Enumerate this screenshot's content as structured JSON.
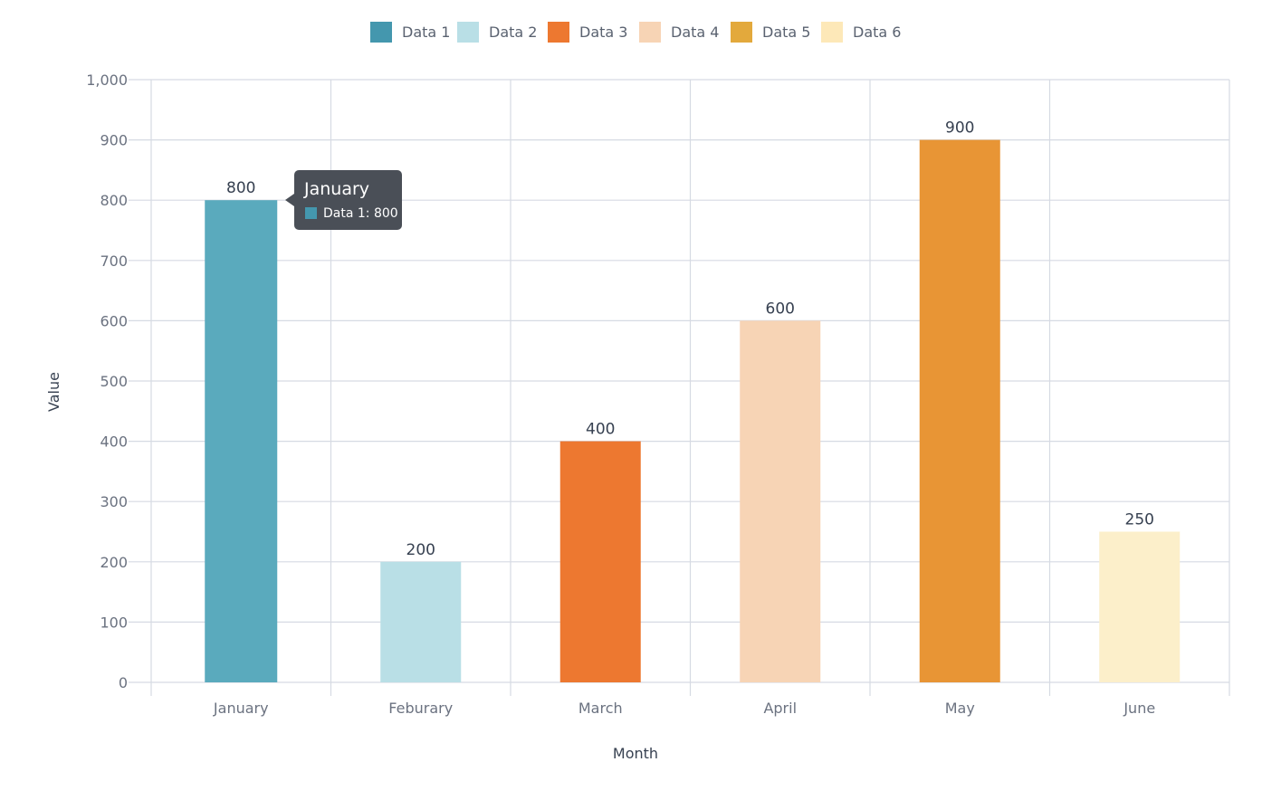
{
  "chart_data": {
    "type": "bar",
    "title": "",
    "xlabel": "Month",
    "ylabel": "Value",
    "ylim": [
      0,
      1000
    ],
    "yticks": [
      0,
      100,
      200,
      300,
      400,
      500,
      600,
      700,
      800,
      900,
      1000
    ],
    "ytick_labels": [
      "0",
      "100",
      "200",
      "300",
      "400",
      "500",
      "600",
      "700",
      "800",
      "900",
      "1,000"
    ],
    "categories": [
      "January",
      "Feburary",
      "March",
      "April",
      "May",
      "June"
    ],
    "series": [
      {
        "name": "Data 1",
        "color": "#5aaabd",
        "legend_color": "#4497ae",
        "category": "January",
        "value": 800
      },
      {
        "name": "Data 2",
        "color": "#b9dfe6",
        "legend_color": "#b9dfe6",
        "category": "Feburary",
        "value": 200
      },
      {
        "name": "Data 3",
        "color": "#ed7830",
        "legend_color": "#ed7830",
        "category": "March",
        "value": 400
      },
      {
        "name": "Data 4",
        "color": "#f7d4b5",
        "legend_color": "#f7d4b5",
        "category": "April",
        "value": 600
      },
      {
        "name": "Data 5",
        "color": "#e89535",
        "legend_color": "#e3a93c",
        "category": "May",
        "value": 900
      },
      {
        "name": "Data 6",
        "color": "#fcefca",
        "legend_color": "#fde8b8",
        "category": "June",
        "value": 250
      }
    ],
    "grid": true,
    "legend_position": "top-center",
    "tooltip": {
      "title": "January",
      "item_label": "Data 1: 800",
      "color": "#4497ae"
    }
  }
}
